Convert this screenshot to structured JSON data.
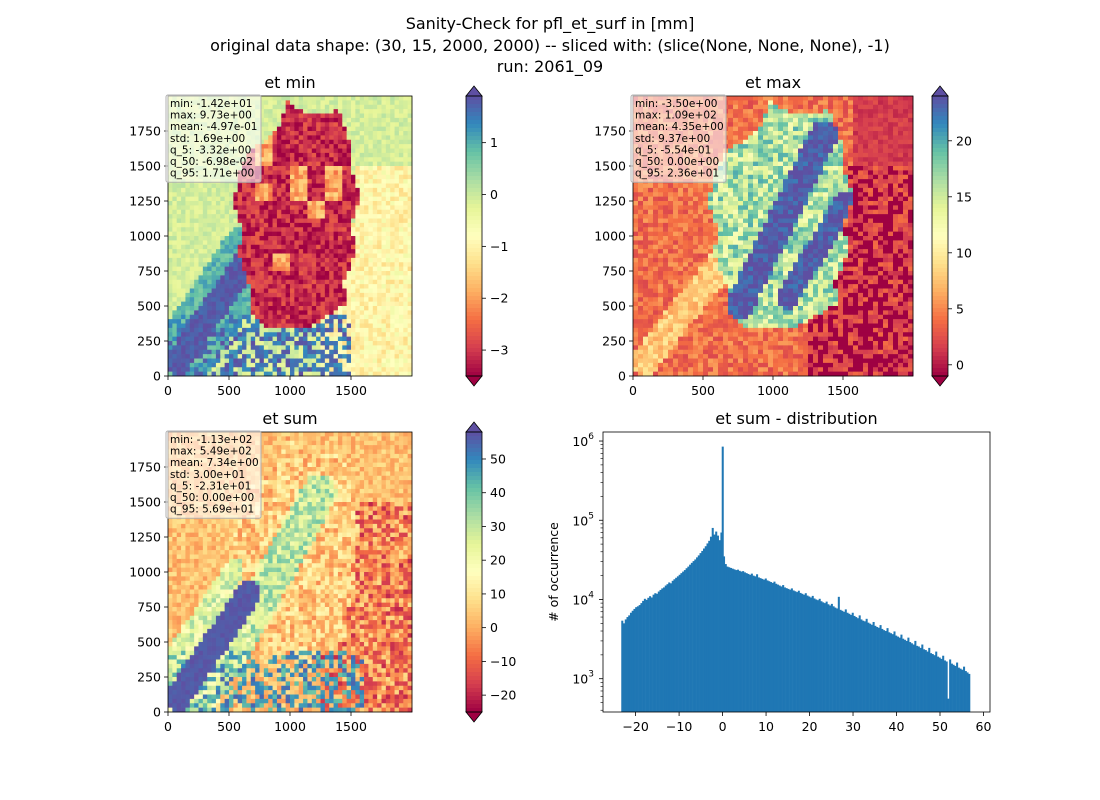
{
  "figure": {
    "title_lines": [
      "Sanity-Check for pfl_et_surf in [mm]",
      "original data shape: (30, 15, 2000, 2000) -- sliced with: (slice(None, None, None), -1)",
      "run: 2061_09"
    ]
  },
  "chart_data": [
    {
      "type": "heatmap",
      "title": "et min",
      "map_type": "et_min",
      "xlim": [
        0,
        2000
      ],
      "ylim": [
        0,
        2000
      ],
      "xticks": [
        0,
        500,
        1000,
        1500
      ],
      "yticks": [
        0,
        250,
        500,
        750,
        1000,
        1250,
        1500,
        1750
      ],
      "colormap": "Spectral",
      "colorbar": {
        "range": [
          -3.5,
          1.9
        ],
        "ticks": [
          -3,
          -2,
          -1,
          0,
          1
        ],
        "tick_labels": [
          "−3",
          "−2",
          "−1",
          "0",
          "1"
        ],
        "extend": "both"
      },
      "stats": [
        "min: -1.42e+01",
        "max: 9.73e+00",
        "mean: -4.97e-01",
        "std: 1.69e+00",
        "q_5: -3.32e+00",
        "q_50: -6.98e-02",
        "q_95: 1.71e+00"
      ]
    },
    {
      "type": "heatmap",
      "title": "et max",
      "map_type": "et_max",
      "xlim": [
        0,
        2000
      ],
      "ylim": [
        0,
        2000
      ],
      "xticks": [
        0,
        500,
        1000,
        1500
      ],
      "yticks": [
        0,
        250,
        500,
        750,
        1000,
        1250,
        1500,
        1750
      ],
      "colormap": "Spectral",
      "colorbar": {
        "range": [
          -1,
          24
        ],
        "ticks": [
          0,
          5,
          10,
          15,
          20
        ],
        "tick_labels": [
          "0",
          "5",
          "10",
          "15",
          "20"
        ],
        "extend": "both"
      },
      "stats": [
        "min: -3.50e+00",
        "max: 1.09e+02",
        "mean: 4.35e+00",
        "std: 9.37e+00",
        "q_5: -5.54e-01",
        "q_50: 0.00e+00",
        "q_95: 2.36e+01"
      ]
    },
    {
      "type": "heatmap",
      "title": "et sum",
      "map_type": "et_sum",
      "xlim": [
        0,
        2000
      ],
      "ylim": [
        0,
        2000
      ],
      "xticks": [
        0,
        500,
        1000,
        1500
      ],
      "yticks": [
        0,
        250,
        500,
        750,
        1000,
        1250,
        1500,
        1750
      ],
      "colormap": "Spectral",
      "colorbar": {
        "range": [
          -25,
          58
        ],
        "ticks": [
          -20,
          -10,
          0,
          10,
          20,
          30,
          40,
          50
        ],
        "tick_labels": [
          "−20",
          "−10",
          "0",
          "10",
          "20",
          "30",
          "40",
          "50"
        ],
        "extend": "both"
      },
      "stats": [
        "min: -1.13e+02",
        "max: 5.49e+02",
        "mean: 7.34e+00",
        "std: 3.00e+01",
        "q_5: -2.31e+01",
        "q_50: 0.00e+00",
        "q_95: 5.69e+01"
      ]
    },
    {
      "type": "bar",
      "title": "et sum - distribution",
      "ylabel": "# of occurrence",
      "yscale": "log",
      "xlim": [
        -27.5,
        61.5
      ],
      "ylim": [
        380,
        1300000
      ],
      "xticks": [
        -20,
        -10,
        0,
        10,
        20,
        30,
        40,
        50,
        60
      ],
      "xtick_labels": [
        "−20",
        "−10",
        "0",
        "10",
        "20",
        "30",
        "40",
        "50",
        "60"
      ],
      "yticks": [
        1000,
        10000,
        100000,
        1000000
      ],
      "color": "#1f77b4",
      "bins": [
        [
          -23.1,
          5400
        ],
        [
          -22.7,
          5000
        ],
        [
          -22.3,
          5600
        ],
        [
          -21.9,
          6000
        ],
        [
          -21.5,
          6300
        ],
        [
          -21.1,
          6800
        ],
        [
          -20.7,
          7200
        ],
        [
          -20.3,
          7600
        ],
        [
          -19.9,
          8000
        ],
        [
          -19.5,
          8200
        ],
        [
          -19.1,
          8500
        ],
        [
          -18.7,
          9000
        ],
        [
          -18.3,
          9600
        ],
        [
          -17.9,
          10200
        ],
        [
          -17.5,
          9900
        ],
        [
          -17.1,
          10500
        ],
        [
          -16.7,
          11000
        ],
        [
          -16.3,
          10600
        ],
        [
          -15.9,
          11500
        ],
        [
          -15.5,
          12000
        ],
        [
          -15.1,
          11800
        ],
        [
          -14.7,
          12600
        ],
        [
          -14.3,
          13200
        ],
        [
          -13.9,
          13800
        ],
        [
          -13.5,
          14200
        ],
        [
          -13.1,
          15000
        ],
        [
          -12.7,
          15600
        ],
        [
          -12.3,
          16400
        ],
        [
          -11.9,
          16000
        ],
        [
          -11.5,
          17200
        ],
        [
          -11.1,
          18000
        ],
        [
          -10.7,
          18800
        ],
        [
          -10.3,
          19600
        ],
        [
          -9.9,
          20500
        ],
        [
          -9.5,
          21500
        ],
        [
          -9.1,
          22500
        ],
        [
          -8.7,
          23500
        ],
        [
          -8.3,
          24800
        ],
        [
          -7.9,
          26000
        ],
        [
          -7.5,
          27500
        ],
        [
          -7.1,
          29000
        ],
        [
          -6.7,
          30500
        ],
        [
          -6.3,
          32000
        ],
        [
          -5.9,
          34000
        ],
        [
          -5.5,
          36000
        ],
        [
          -5.1,
          38500
        ],
        [
          -4.7,
          41000
        ],
        [
          -4.3,
          44000
        ],
        [
          -3.9,
          47000
        ],
        [
          -3.5,
          51000
        ],
        [
          -3.1,
          55000
        ],
        [
          -2.7,
          62000
        ],
        [
          -2.3,
          80000
        ],
        [
          -1.9,
          66000
        ],
        [
          -1.5,
          72000
        ],
        [
          -1.1,
          64000
        ],
        [
          -0.7,
          56000
        ],
        [
          -0.3,
          70000
        ],
        [
          0.0,
          850000
        ],
        [
          0.3,
          35000
        ],
        [
          0.7,
          28000
        ],
        [
          1.1,
          26000
        ],
        [
          1.5,
          25500
        ],
        [
          1.9,
          25000
        ],
        [
          2.3,
          24500
        ],
        [
          2.7,
          24000
        ],
        [
          3.1,
          23500
        ],
        [
          3.5,
          23800
        ],
        [
          3.9,
          23000
        ],
        [
          4.3,
          22500
        ],
        [
          4.7,
          22800
        ],
        [
          5.1,
          22000
        ],
        [
          5.5,
          21500
        ],
        [
          5.9,
          21000
        ],
        [
          6.3,
          20500
        ],
        [
          6.7,
          21200
        ],
        [
          7.1,
          20000
        ],
        [
          7.5,
          19600
        ],
        [
          7.9,
          20800
        ],
        [
          8.3,
          19000
        ],
        [
          8.7,
          18600
        ],
        [
          9.1,
          18200
        ],
        [
          9.5,
          17800
        ],
        [
          9.9,
          18400
        ],
        [
          10.3,
          17400
        ],
        [
          10.7,
          17000
        ],
        [
          11.1,
          16600
        ],
        [
          11.5,
          16200
        ],
        [
          11.9,
          16800
        ],
        [
          12.3,
          15800
        ],
        [
          12.7,
          15400
        ],
        [
          13.1,
          15000
        ],
        [
          13.5,
          14600
        ],
        [
          13.9,
          15200
        ],
        [
          14.3,
          14200
        ],
        [
          14.7,
          13900
        ],
        [
          15.1,
          13600
        ],
        [
          15.5,
          13300
        ],
        [
          15.9,
          13800
        ],
        [
          16.3,
          13000
        ],
        [
          16.7,
          12700
        ],
        [
          17.1,
          12400
        ],
        [
          17.5,
          12900
        ],
        [
          17.9,
          12100
        ],
        [
          18.3,
          11800
        ],
        [
          18.7,
          11500
        ],
        [
          19.1,
          12000
        ],
        [
          19.5,
          11200
        ],
        [
          19.9,
          10900
        ],
        [
          20.3,
          10600
        ],
        [
          20.7,
          11100
        ],
        [
          21.1,
          10300
        ],
        [
          21.5,
          10000
        ],
        [
          21.9,
          9800
        ],
        [
          22.3,
          10200
        ],
        [
          22.7,
          9500
        ],
        [
          23.1,
          9200
        ],
        [
          23.5,
          9000
        ],
        [
          23.9,
          9400
        ],
        [
          24.3,
          8700
        ],
        [
          24.7,
          8400
        ],
        [
          25.1,
          8800
        ],
        [
          25.5,
          8200
        ],
        [
          25.9,
          7900
        ],
        [
          26.3,
          7700
        ],
        [
          26.7,
          10800
        ],
        [
          27.1,
          7400
        ],
        [
          27.5,
          7200
        ],
        [
          27.9,
          7000
        ],
        [
          28.3,
          7500
        ],
        [
          28.7,
          6800
        ],
        [
          29.1,
          6600
        ],
        [
          29.5,
          6400
        ],
        [
          29.9,
          6800
        ],
        [
          30.3,
          6200
        ],
        [
          30.7,
          6000
        ],
        [
          31.1,
          5800
        ],
        [
          31.5,
          6300
        ],
        [
          31.9,
          5600
        ],
        [
          32.3,
          5400
        ],
        [
          32.7,
          5300
        ],
        [
          33.1,
          5700
        ],
        [
          33.5,
          5100
        ],
        [
          33.9,
          4950
        ],
        [
          34.3,
          4800
        ],
        [
          34.7,
          5200
        ],
        [
          35.1,
          4650
        ],
        [
          35.5,
          4500
        ],
        [
          35.9,
          4400
        ],
        [
          36.3,
          4750
        ],
        [
          36.7,
          4250
        ],
        [
          37.1,
          4100
        ],
        [
          37.5,
          4000
        ],
        [
          37.9,
          4350
        ],
        [
          38.3,
          3850
        ],
        [
          38.7,
          3750
        ],
        [
          39.1,
          3650
        ],
        [
          39.5,
          3950
        ],
        [
          39.9,
          3500
        ],
        [
          40.3,
          3400
        ],
        [
          40.7,
          3300
        ],
        [
          41.1,
          3600
        ],
        [
          41.5,
          3200
        ],
        [
          41.9,
          3100
        ],
        [
          42.3,
          3000
        ],
        [
          42.7,
          3300
        ],
        [
          43.1,
          2900
        ],
        [
          43.5,
          2800
        ],
        [
          43.9,
          2700
        ],
        [
          44.3,
          3000
        ],
        [
          44.7,
          2600
        ],
        [
          45.1,
          2550
        ],
        [
          45.5,
          2450
        ],
        [
          45.9,
          2700
        ],
        [
          46.3,
          2350
        ],
        [
          46.7,
          2300
        ],
        [
          47.1,
          2200
        ],
        [
          47.5,
          2450
        ],
        [
          47.9,
          2100
        ],
        [
          48.3,
          2050
        ],
        [
          48.7,
          1980
        ],
        [
          49.1,
          2200
        ],
        [
          49.5,
          1900
        ],
        [
          49.9,
          1850
        ],
        [
          50.3,
          1780
        ],
        [
          50.7,
          1950
        ],
        [
          51.1,
          1700
        ],
        [
          51.5,
          1650
        ],
        [
          51.9,
          560
        ],
        [
          52.3,
          1750
        ],
        [
          52.7,
          1550
        ],
        [
          53.1,
          1500
        ],
        [
          53.5,
          1450
        ],
        [
          53.9,
          1600
        ],
        [
          54.3,
          1380
        ],
        [
          54.7,
          1340
        ],
        [
          55.1,
          1300
        ],
        [
          55.5,
          1420
        ],
        [
          55.9,
          1250
        ],
        [
          56.3,
          1200
        ],
        [
          56.7,
          1150
        ]
      ]
    }
  ]
}
